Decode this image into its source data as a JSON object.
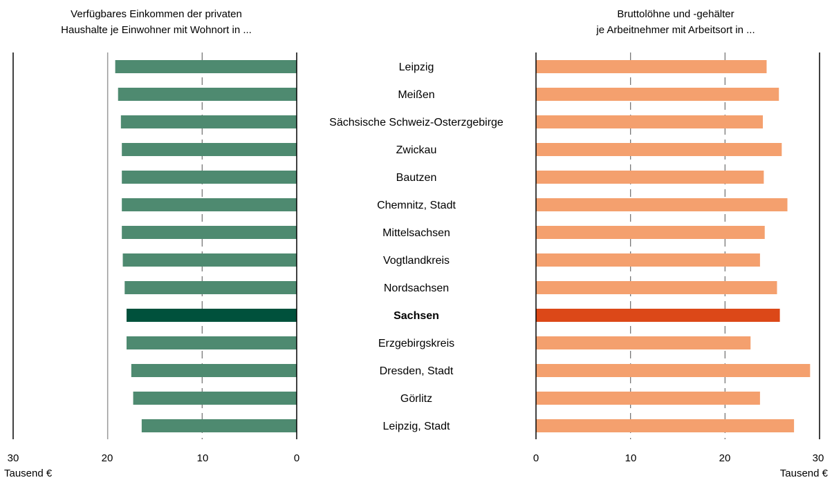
{
  "chart_data": {
    "type": "bar",
    "orientation": "horizontal",
    "layout": "mirrored-butterfly",
    "categories": [
      "Leipzig",
      "Meißen",
      "Sächsische Schweiz-Osterzgebirge",
      "Zwickau",
      "Bautzen",
      "Chemnitz, Stadt",
      "Mittelsachsen",
      "Vogtlandkreis",
      "Nordsachsen",
      "Sachsen",
      "Erzgebirgskreis",
      "Dresden, Stadt",
      "Görlitz",
      "Leipzig, Stadt"
    ],
    "highlight_category": "Sachsen",
    "left_panel": {
      "title_lines": [
        "Verfügbares Einkommen der privaten",
        "Haushalte je Einwohner mit Wohnort in ..."
      ],
      "unit_label": "Tausend €",
      "xlim": [
        0,
        30
      ],
      "ticks": [
        "30",
        "20",
        "10",
        "0"
      ],
      "bar_color": "#4e8a70",
      "highlight_color": "#00513c",
      "values": [
        19.2,
        18.9,
        18.6,
        18.5,
        18.5,
        18.5,
        18.5,
        18.4,
        18.2,
        18.0,
        18.0,
        17.5,
        17.3,
        16.4
      ]
    },
    "right_panel": {
      "title_lines": [
        "Bruttolöhne und -gehälter",
        "je Arbeitnehmer mit Arbeitsort in ..."
      ],
      "unit_label": "Tausend €",
      "xlim": [
        0,
        30
      ],
      "ticks": [
        "0",
        "10",
        "20",
        "30"
      ],
      "bar_color": "#f4a06e",
      "highlight_color": "#dc4818",
      "values": [
        24.4,
        25.7,
        24.0,
        26.0,
        24.1,
        26.6,
        24.2,
        23.7,
        25.5,
        25.8,
        22.7,
        29.0,
        23.7,
        27.3
      ]
    }
  }
}
